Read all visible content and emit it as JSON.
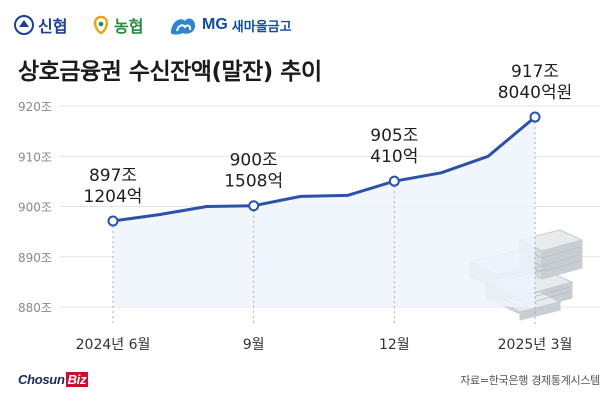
{
  "logos": {
    "shinhan": "신협",
    "nh": "농협",
    "mg_mark": "MG",
    "mg_name": "새마을금고"
  },
  "title": "상호금융권 수신잔액(말잔) 추이",
  "source": "자료=한국은행 경제통계시스템",
  "publisher": {
    "name": "Chosun",
    "suffix": "Biz"
  },
  "colors": {
    "line": "#2b52a8",
    "fill": "#eef3fb",
    "grid": "#e4e4e4",
    "drop": "#9aaed8"
  },
  "chart_data": {
    "type": "line",
    "x": [
      "2024-06",
      "2024-07",
      "2024-08",
      "2024-09",
      "2024-10",
      "2024-11",
      "2024-12",
      "2025-01",
      "2025-02",
      "2025-03"
    ],
    "values": [
      897.12,
      898.4,
      900.0,
      900.15,
      902.0,
      902.2,
      905.04,
      906.7,
      910.0,
      917.8
    ],
    "xticks": [
      {
        "index": 0,
        "label": "2024년 6월"
      },
      {
        "index": 3,
        "label": "9월"
      },
      {
        "index": 6,
        "label": "12월"
      },
      {
        "index": 9,
        "label": "2025년 3월"
      }
    ],
    "yticks": [
      {
        "value": 880,
        "label": "880조"
      },
      {
        "value": 890,
        "label": "890조"
      },
      {
        "value": 900,
        "label": "900조"
      },
      {
        "value": 910,
        "label": "910조"
      },
      {
        "value": 920,
        "label": "920조"
      }
    ],
    "ylim": [
      880,
      920
    ],
    "annotations": [
      {
        "index": 0,
        "line1": "897조",
        "line2": "1204억"
      },
      {
        "index": 3,
        "line1": "900조",
        "line2": "1508억"
      },
      {
        "index": 6,
        "line1": "905조",
        "line2": "410억"
      },
      {
        "index": 9,
        "line1": "917조",
        "line2": "8040억원"
      }
    ],
    "grid": true,
    "area_fill": true
  }
}
